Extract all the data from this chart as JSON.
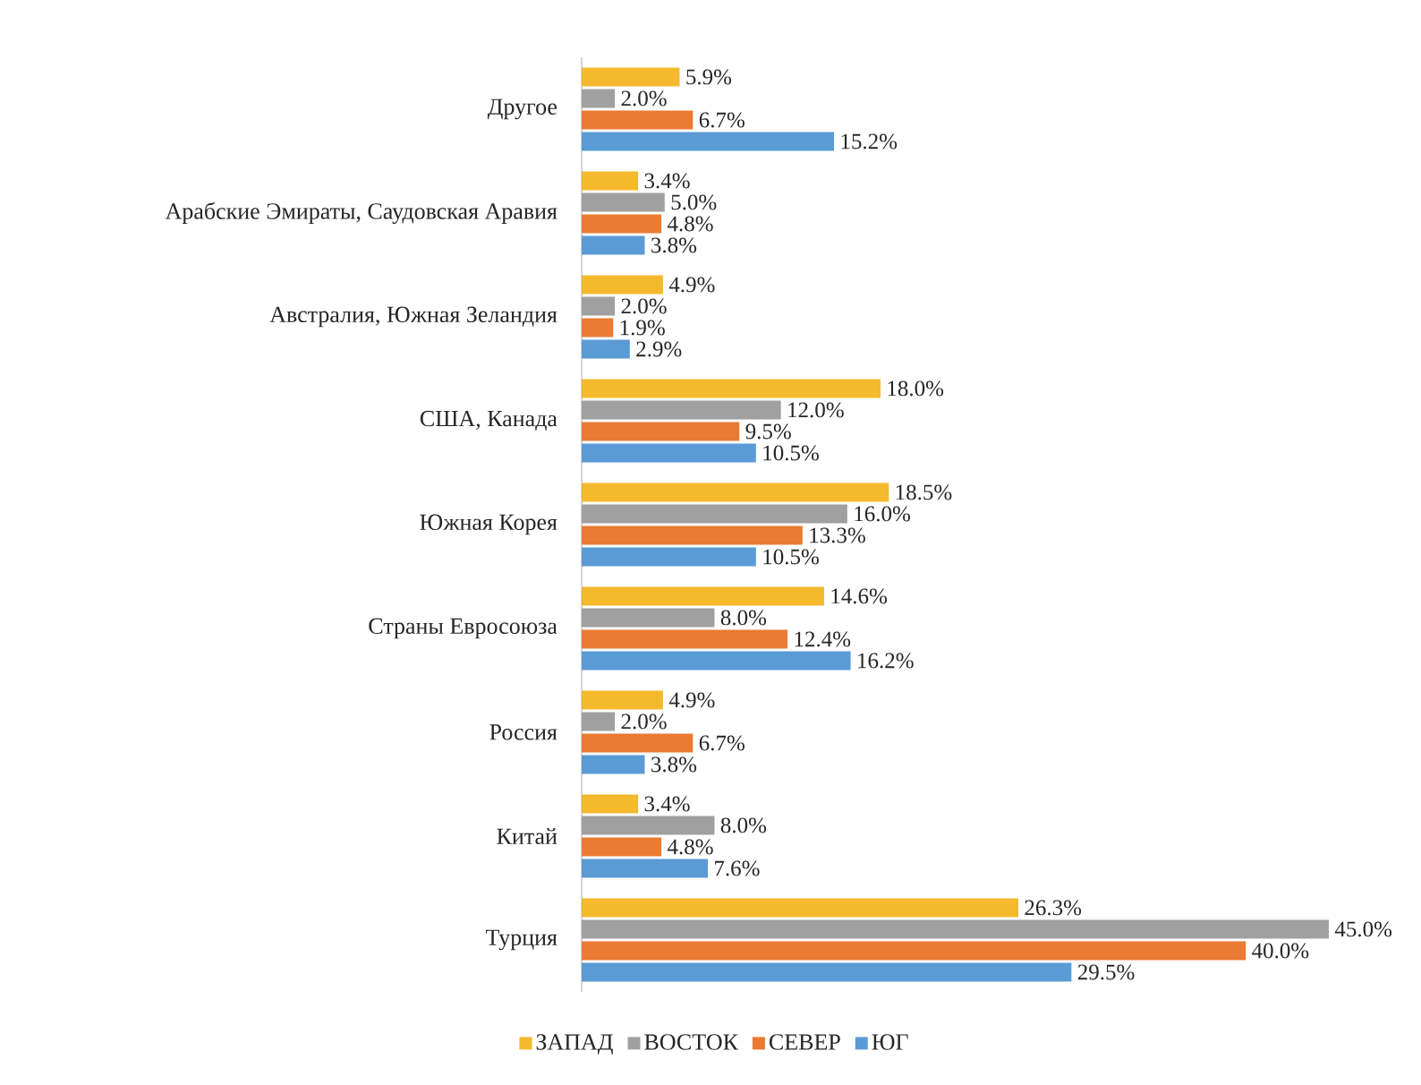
{
  "chart_data": {
    "type": "bar",
    "orientation": "horizontal",
    "categories": [
      "Другое",
      "Арабские Эмираты, Саудовская Аравия",
      "Австралия, Южная Зеландия",
      "США, Канада",
      "Южная Корея",
      "Страны Евросоюза",
      "Россия",
      "Китай",
      "Турция"
    ],
    "series": [
      {
        "name": "ЗАПАД",
        "color": "#f4b92d",
        "values": [
          5.9,
          3.4,
          4.9,
          18.0,
          18.5,
          14.6,
          4.9,
          3.4,
          26.3
        ],
        "value_labels": [
          "5.9%",
          "3.4%",
          "4.9%",
          "18.0%",
          "18.5%",
          "14.6%",
          "4.9%",
          "3.4%",
          "26.3%"
        ]
      },
      {
        "name": "ВОСТОК",
        "color": "#a0a0a0",
        "values": [
          2.0,
          5.0,
          2.0,
          12.0,
          16.0,
          8.0,
          2.0,
          8.0,
          45.0
        ],
        "value_labels": [
          "2.0%",
          "5.0%",
          "2.0%",
          "12.0%",
          "16.0%",
          "8.0%",
          "2.0%",
          "8.0%",
          "45.0%"
        ]
      },
      {
        "name": "СЕВЕР",
        "color": "#eb7a32",
        "values": [
          6.7,
          4.8,
          1.9,
          9.5,
          13.3,
          12.4,
          6.7,
          4.8,
          40.0
        ],
        "value_labels": [
          "6.7%",
          "4.8%",
          "1.9%",
          "9.5%",
          "13.3%",
          "12.4%",
          "6.7%",
          "4.8%",
          "40.0%"
        ]
      },
      {
        "name": "ЮГ",
        "color": "#5b9bd5",
        "values": [
          15.2,
          3.8,
          2.9,
          10.5,
          10.5,
          16.2,
          3.8,
          7.6,
          29.5
        ],
        "value_labels": [
          "15.2%",
          "3.8%",
          "2.9%",
          "10.5%",
          "10.5%",
          "16.2%",
          "3.8%",
          "7.6%",
          "29.5%"
        ]
      }
    ],
    "legend": "bottom",
    "tick_labels": "y"
  }
}
